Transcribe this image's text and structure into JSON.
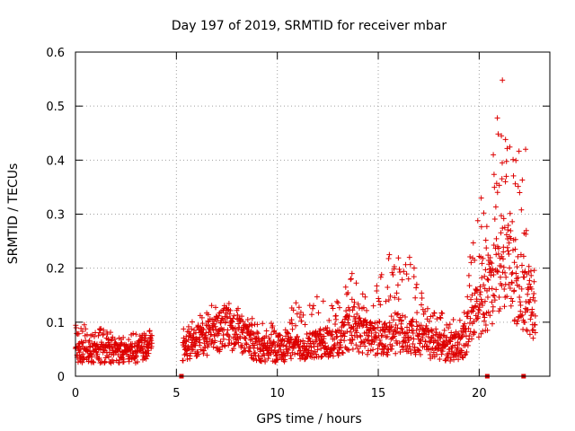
{
  "chart_data": {
    "type": "scatter",
    "title": "Day 197 of 2019, SRMTID for receiver mbar",
    "xlabel": "GPS time / hours",
    "ylabel": "SRMTID / TECUs",
    "xlim": [
      0,
      23.5
    ],
    "ylim": [
      0,
      0.6
    ],
    "grid": true,
    "marker": "+",
    "series_color": "#dd0000",
    "xticks": [
      0,
      5,
      10,
      15,
      20
    ],
    "xtick_labels": [
      "0",
      "5",
      "10",
      "15",
      "20"
    ],
    "yticks": [
      0,
      0.1,
      0.2,
      0.3,
      0.4,
      0.5,
      0.6
    ],
    "ytick_labels": [
      "0",
      "0.1",
      "0.2",
      "0.3",
      "0.4",
      "0.5",
      "0.6"
    ],
    "gaps_hours": [
      [
        3.8,
        5.3
      ]
    ],
    "zero_markers_hours": [
      5.25,
      20.4,
      22.2
    ],
    "envelope": {
      "hours": [
        0,
        1,
        2,
        3,
        3.7,
        5.3,
        6,
        7,
        7.5,
        8,
        9,
        10,
        11,
        12,
        13,
        13.7,
        14.5,
        15.5,
        16.5,
        17.5,
        18.5,
        19.2,
        19.6,
        20,
        20.5,
        21,
        21.3,
        21.6,
        22,
        22.4,
        22.8
      ],
      "median": [
        0.045,
        0.045,
        0.043,
        0.042,
        0.06,
        0.05,
        0.06,
        0.08,
        0.09,
        0.08,
        0.05,
        0.045,
        0.055,
        0.06,
        0.065,
        0.09,
        0.07,
        0.07,
        0.08,
        0.06,
        0.05,
        0.06,
        0.1,
        0.13,
        0.15,
        0.2,
        0.22,
        0.2,
        0.16,
        0.14,
        0.1
      ],
      "peak": [
        0.1,
        0.09,
        0.085,
        0.08,
        0.09,
        0.09,
        0.11,
        0.14,
        0.15,
        0.13,
        0.1,
        0.1,
        0.14,
        0.15,
        0.14,
        0.19,
        0.14,
        0.22,
        0.22,
        0.15,
        0.1,
        0.12,
        0.24,
        0.33,
        0.31,
        0.47,
        0.55,
        0.45,
        0.44,
        0.25,
        0.2
      ]
    },
    "highlighted_points": [
      {
        "x": 21.15,
        "y": 0.548
      },
      {
        "x": 20.9,
        "y": 0.478
      },
      {
        "x": 21.1,
        "y": 0.445
      },
      {
        "x": 21.3,
        "y": 0.36
      },
      {
        "x": 20.7,
        "y": 0.41
      },
      {
        "x": 20.1,
        "y": 0.33
      },
      {
        "x": 22.3,
        "y": 0.42
      },
      {
        "x": 15.55,
        "y": 0.225
      },
      {
        "x": 16.55,
        "y": 0.22
      },
      {
        "x": 13.7,
        "y": 0.19
      }
    ]
  }
}
